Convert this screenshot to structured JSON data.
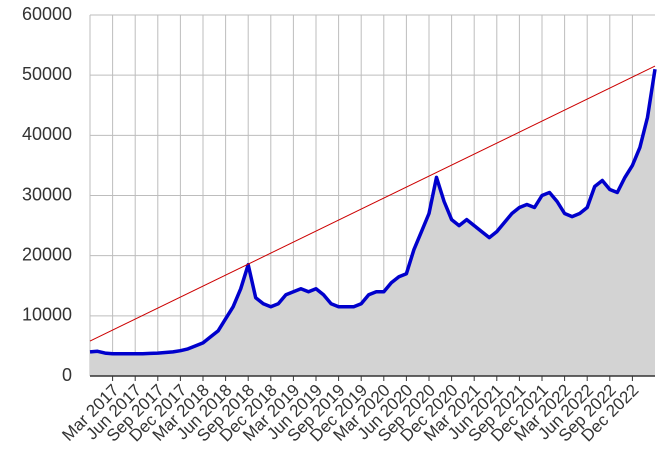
{
  "chart_data": {
    "type": "line",
    "x": [
      "Dec 2016",
      "Jan 2017",
      "Feb 2017",
      "Mar 2017",
      "Apr 2017",
      "May 2017",
      "Jun 2017",
      "Jul 2017",
      "Aug 2017",
      "Sep 2017",
      "Oct 2017",
      "Nov 2017",
      "Dec 2017",
      "Jan 2018",
      "Feb 2018",
      "Mar 2018",
      "Apr 2018",
      "May 2018",
      "Jun 2018",
      "Jul 2018",
      "Aug 2018",
      "Sep 2018",
      "Oct 2018",
      "Nov 2018",
      "Dec 2018",
      "Jan 2019",
      "Feb 2019",
      "Mar 2019",
      "Apr 2019",
      "May 2019",
      "Jun 2019",
      "Jul 2019",
      "Aug 2019",
      "Sep 2019",
      "Oct 2019",
      "Nov 2019",
      "Dec 2019",
      "Jan 2020",
      "Feb 2020",
      "Mar 2020",
      "Apr 2020",
      "May 2020",
      "Jun 2020",
      "Jul 2020",
      "Aug 2020",
      "Sep 2020",
      "Oct 2020",
      "Nov 2020",
      "Dec 2020",
      "Jan 2021",
      "Feb 2021",
      "Mar 2021",
      "Apr 2021",
      "May 2021",
      "Jun 2021",
      "Jul 2021",
      "Aug 2021",
      "Sep 2021",
      "Oct 2021",
      "Nov 2021",
      "Dec 2021",
      "Jan 2022",
      "Feb 2022",
      "Mar 2022",
      "Apr 2022",
      "May 2022",
      "Jun 2022",
      "Jul 2022",
      "Aug 2022",
      "Sep 2022",
      "Oct 2022",
      "Nov 2022",
      "Dec 2022",
      "Jan 2023",
      "Feb 2023",
      "Mar 2023"
    ],
    "series": [
      {
        "color": "#0000cc",
        "fill": "#d3d3d3",
        "values": [
          4000,
          4100,
          3800,
          3700,
          3700,
          3700,
          3700,
          3700,
          3750,
          3800,
          3900,
          4000,
          4200,
          4500,
          5000,
          5500,
          6500,
          7500,
          9500,
          11500,
          14500,
          18500,
          13000,
          12000,
          11500,
          12000,
          13500,
          14000,
          14500,
          14000,
          14500,
          13500,
          12000,
          11500,
          11500,
          11500,
          12000,
          13500,
          14000,
          14000,
          15500,
          16500,
          17000,
          21000,
          24000,
          27000,
          33000,
          29000,
          26000,
          25000,
          26000,
          25000,
          24000,
          23000,
          24000,
          25500,
          27000,
          28000,
          28500,
          28000,
          30000,
          30500,
          29000,
          27000,
          26500,
          27000,
          28000,
          31500,
          32500,
          31000,
          30500,
          33000,
          35000,
          38000,
          43000,
          51000
        ]
      },
      {
        "color": "#cc0000",
        "x": [
          "Dec 2016",
          "Mar 2023"
        ],
        "values": [
          5800,
          51500
        ]
      }
    ],
    "xticks": [
      "Mar 2017",
      "Jun 2017",
      "Sep 2017",
      "Dec 2017",
      "Mar 2018",
      "Jun 2018",
      "Sep 2018",
      "Dec 2018",
      "Mar 2019",
      "Jun 2019",
      "Sep 2019",
      "Dec 2019",
      "Mar 2020",
      "Jun 2020",
      "Sep 2020",
      "Dec 2020",
      "Mar 2021",
      "Jun 2021",
      "Sep 2021",
      "Dec 2021",
      "Mar 2022",
      "Jun 2022",
      "Sep 2022",
      "Dec 2022"
    ],
    "ylim": [
      0,
      60000
    ],
    "yticks": [
      0,
      10000,
      20000,
      30000,
      40000,
      50000,
      60000
    ],
    "grid": true
  }
}
